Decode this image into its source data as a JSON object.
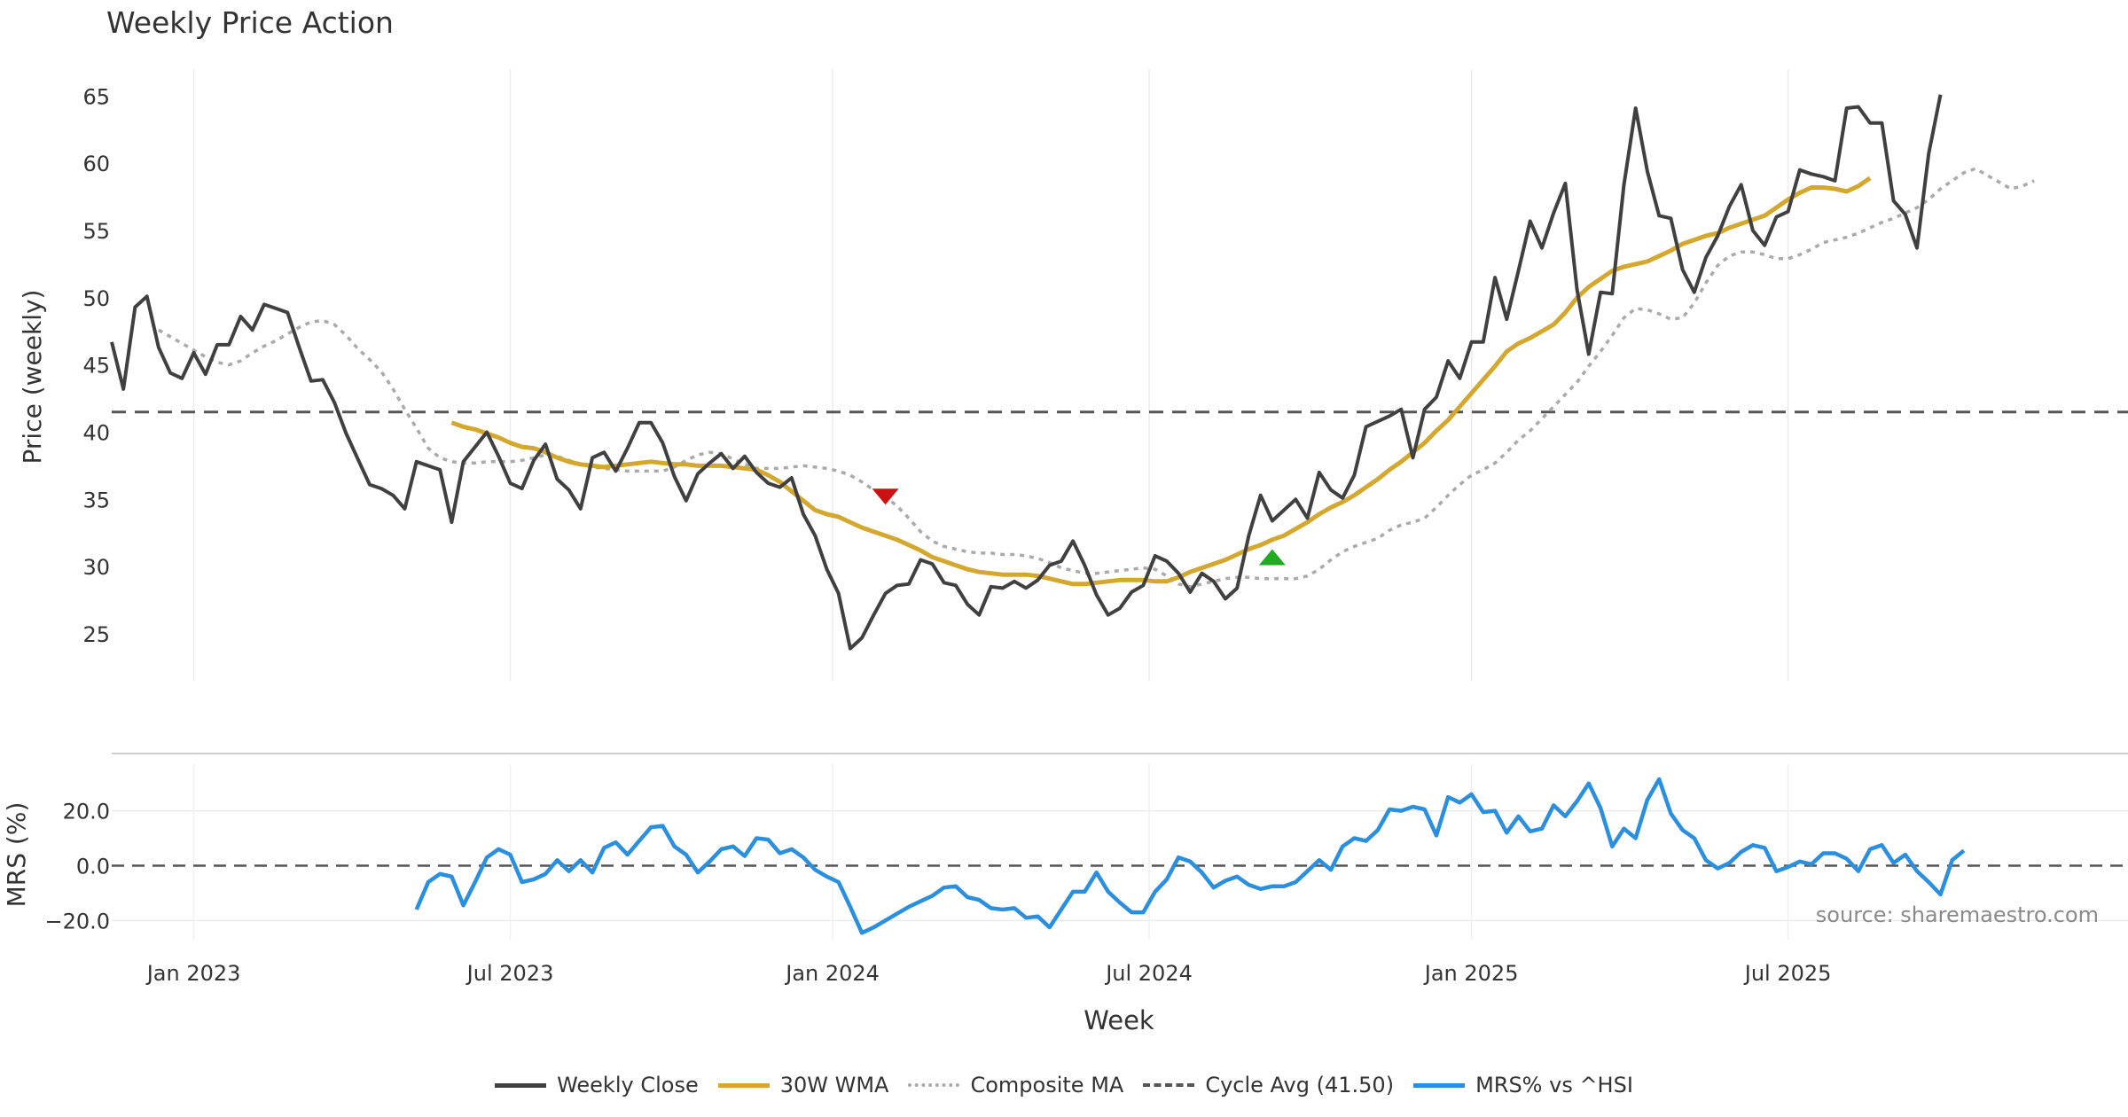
{
  "title": "Weekly Price Action",
  "source": "source: sharemaestro.com",
  "colors": {
    "close": "#404040",
    "wma": "#d4a82e",
    "composite": "#aaaaaa",
    "cycle": "#555555",
    "mrs": "#2b8fe0",
    "sell": "#cc1111",
    "buy": "#22aa22"
  },
  "legend": [
    {
      "label": "Weekly Close",
      "style": "solid",
      "color_key": "close"
    },
    {
      "label": "30W WMA",
      "style": "solid",
      "color_key": "wma"
    },
    {
      "label": "Composite MA",
      "style": "dotted",
      "color_key": "composite"
    },
    {
      "label": "Cycle Avg (41.50)",
      "style": "dashed",
      "color_key": "cycle"
    },
    {
      "label": "MRS% vs ^HSI",
      "style": "solid",
      "color_key": "mrs"
    }
  ],
  "chart_data": [
    {
      "type": "line",
      "title": "Weekly Price Action",
      "ylabel": "Price (weekly)",
      "ylim": [
        21.5,
        67
      ],
      "xlim": [
        -13,
        159
      ],
      "yticks": [
        25,
        30,
        35,
        40,
        45,
        50,
        55,
        60,
        65
      ],
      "cycle_avg": 41.5,
      "series": [
        {
          "name": "Weekly Close",
          "start": -13,
          "values": [
            46.7,
            43.2,
            49.3,
            50.1,
            46.3,
            44.4,
            44,
            45.9,
            44.3,
            46.5,
            46.5,
            48.6,
            47.6,
            49.5,
            49.2,
            48.9,
            46.3,
            43.8,
            43.9,
            42.2,
            39.9,
            38,
            36.1,
            35.8,
            35.3,
            34.3,
            37.8,
            37.5,
            37.2,
            33.3,
            37.8,
            38.9,
            40,
            38.2,
            36.2,
            35.8,
            37.9,
            39.1,
            36.5,
            35.7,
            34.3,
            38.1,
            38.5,
            37.1,
            38.8,
            40.7,
            40.7,
            39.2,
            36.7,
            34.9,
            36.9,
            37.7,
            38.4,
            37.3,
            38.2,
            37,
            36.2,
            35.9,
            36.6,
            33.9,
            32.3,
            29.8,
            28,
            23.9,
            24.7,
            26.4,
            28,
            28.6,
            28.7,
            30.5,
            30.2,
            28.8,
            28.6,
            27.2,
            26.4,
            28.5,
            28.4,
            28.9,
            28.4,
            29,
            30.1,
            30.4,
            31.9,
            30.1,
            27.9,
            26.4,
            26.9,
            28.1,
            28.6,
            30.8,
            30.4,
            29.5,
            28.1,
            29.5,
            28.9,
            27.6,
            28.4,
            32.3,
            35.3,
            33.4,
            34.2,
            35,
            33.6,
            37,
            35.7,
            35.1,
            36.8,
            40.4,
            40.8,
            41.2,
            41.7,
            38.1,
            41.7,
            42.6,
            45.3,
            44,
            46.7,
            46.7,
            51.5,
            48.4,
            52,
            55.7,
            53.7,
            56.3,
            58.5,
            50.6,
            45.8,
            50.4,
            50.3,
            58.4,
            64.1,
            59.4,
            56.1,
            55.9,
            52.1,
            50.4,
            53,
            54.6,
            56.8,
            58.4,
            55,
            53.9,
            56,
            56.4,
            59.5,
            59.2,
            59,
            58.7,
            64.1,
            64.2,
            63,
            63,
            57.2,
            56.2,
            53.7,
            60.7,
            65.1
          ]
        },
        {
          "name": "30W WMA",
          "start": 16,
          "values": [
            40.7,
            40.4,
            40.2,
            39.9,
            39.6,
            39.2,
            38.9,
            38.8,
            38.5,
            38.1,
            37.8,
            37.6,
            37.5,
            37.4,
            37.5,
            37.6,
            37.7,
            37.8,
            37.7,
            37.6,
            37.6,
            37.5,
            37.5,
            37.5,
            37.4,
            37.3,
            37.2,
            36.8,
            36.3,
            35.6,
            34.9,
            34.2,
            33.9,
            33.7,
            33.3,
            32.9,
            32.6,
            32.3,
            32,
            31.6,
            31.2,
            30.7,
            30.4,
            30.1,
            29.8,
            29.6,
            29.5,
            29.4,
            29.4,
            29.4,
            29.3,
            29.1,
            28.9,
            28.7,
            28.7,
            28.8,
            28.9,
            29,
            29,
            29,
            28.9,
            28.9,
            29.2,
            29.6,
            29.9,
            30.2,
            30.5,
            30.9,
            31.3,
            31.6,
            32,
            32.3,
            32.8,
            33.3,
            33.9,
            34.4,
            34.8,
            35.3,
            35.9,
            36.5,
            37.2,
            37.8,
            38.5,
            39.2,
            40.1,
            40.9,
            41.9,
            42.9,
            43.9,
            44.9,
            46,
            46.6,
            47,
            47.5,
            48,
            48.9,
            50,
            50.8,
            51.4,
            52,
            52.3,
            52.5,
            52.7,
            53.1,
            53.5,
            54,
            54.3,
            54.6,
            54.8,
            55.2,
            55.5,
            55.8,
            56.1,
            56.7,
            57.3,
            57.8,
            58.2,
            58.2,
            58.1,
            57.9,
            58.3,
            58.9
          ]
        },
        {
          "name": "Composite MA",
          "start": -9,
          "values": [
            47.6,
            47.1,
            46.6,
            46.1,
            45.6,
            45.2,
            45,
            45.3,
            45.9,
            46.4,
            46.8,
            47.3,
            47.8,
            48.2,
            48.3,
            48,
            47.2,
            46.2,
            45.4,
            44.5,
            43.2,
            41.7,
            40.3,
            38.8,
            38.1,
            37.8,
            37.7,
            37.7,
            37.8,
            37.8,
            37.8,
            37.9,
            38.1,
            38.3,
            38.2,
            37.9,
            37.6,
            37.4,
            37.3,
            37.2,
            37.1,
            37.1,
            37.1,
            37.1,
            37.4,
            37.9,
            38.3,
            38.5,
            38.4,
            38,
            37.6,
            37.3,
            37.3,
            37.3,
            37.4,
            37.5,
            37.4,
            37.3,
            37.1,
            36.8,
            36.3,
            35.7,
            35.2,
            34.5,
            33.6,
            32.6,
            31.9,
            31.5,
            31.3,
            31.1,
            31,
            31,
            30.9,
            30.9,
            30.8,
            30.6,
            30.3,
            29.9,
            29.7,
            29.5,
            29.5,
            29.6,
            29.7,
            29.8,
            29.9,
            29.8,
            29.3,
            28.7,
            28.5,
            28.7,
            28.9,
            29.1,
            29.2,
            29.2,
            29.1,
            29.1,
            29.1,
            29.1,
            29.3,
            29.8,
            30.5,
            31.1,
            31.5,
            31.8,
            32.1,
            32.7,
            33.1,
            33.3,
            33.6,
            34.4,
            35.3,
            36.1,
            36.8,
            37.2,
            37.7,
            38.5,
            39.4,
            40.1,
            41,
            41.9,
            42.8,
            43.7,
            44.9,
            46,
            47.2,
            48.5,
            49.2,
            49.1,
            48.8,
            48.4,
            48.5,
            49.6,
            51.1,
            52.4,
            53.1,
            53.4,
            53.4,
            53.2,
            52.9,
            52.9,
            53.2,
            53.6,
            54.1,
            54.3,
            54.5,
            54.8,
            55.2,
            55.6,
            55.9,
            56.3,
            56.7,
            57.3,
            58.1,
            58.7,
            59.3,
            59.6,
            59.1,
            58.6,
            58.1,
            58.3,
            58.7
          ]
        }
      ],
      "signals": [
        {
          "type": "sell",
          "x": 53,
          "y": 35.2
        },
        {
          "type": "buy",
          "x": 86,
          "y": 30.7
        }
      ]
    },
    {
      "type": "line",
      "ylabel": "MRS (%)",
      "ylim": [
        -27,
        37
      ],
      "xlim": [
        -13,
        159
      ],
      "yticks": [
        20.0,
        0.0,
        -20.0
      ],
      "ytick_labels": [
        "20.0",
        "0.0",
        "−20.0"
      ],
      "zero_line": 0,
      "xlabel": "Week",
      "xticks": [
        {
          "x": -6,
          "label": "Jan 2023"
        },
        {
          "x": 21,
          "label": "Jul 2023"
        },
        {
          "x": 48.5,
          "label": "Jan 2024"
        },
        {
          "x": 75.5,
          "label": "Jul 2024"
        },
        {
          "x": 103,
          "label": "Jan 2025"
        },
        {
          "x": 130,
          "label": "Jul 2025"
        }
      ],
      "series": [
        {
          "name": "MRS% vs ^HSI",
          "start": 13,
          "values": [
            -16,
            -6,
            -3,
            -4,
            -14.5,
            -6,
            3,
            6,
            4,
            -6,
            -5,
            -3,
            2,
            -2,
            2,
            -2.5,
            6.5,
            8.5,
            4,
            9,
            14,
            14.5,
            7,
            4,
            -2.5,
            1.5,
            6,
            7,
            3.5,
            10,
            9.5,
            4.5,
            6,
            3,
            -1.5,
            -4,
            -6,
            -15,
            -24.5,
            -22.5,
            -20,
            -17.5,
            -15,
            -13,
            -11,
            -8,
            -7.5,
            -11.5,
            -12.5,
            -15.5,
            -16,
            -15.5,
            -19,
            -18.5,
            -22.5,
            -16,
            -9.5,
            -9.5,
            -2.5,
            -9.5,
            -13.5,
            -17,
            -17,
            -9.5,
            -5,
            3,
            1.5,
            -2.5,
            -8,
            -5.5,
            -4,
            -7,
            -8.5,
            -7.5,
            -7.5,
            -6,
            -2,
            2,
            -1.5,
            7,
            10,
            9,
            13,
            20.5,
            20,
            21.5,
            20.5,
            11,
            25,
            23,
            26,
            19.5,
            20,
            12,
            18,
            12.5,
            13.5,
            22,
            18,
            23.5,
            30,
            21,
            7,
            13.5,
            10,
            24,
            31.5,
            19,
            13,
            10,
            2,
            -1,
            1,
            5,
            7.5,
            6.5,
            -2,
            -0.5,
            1.5,
            0.5,
            4.5,
            4.5,
            2.5,
            -2,
            6,
            7.5,
            1,
            4,
            -2,
            -6,
            -10.5,
            2,
            5.5
          ]
        }
      ]
    }
  ]
}
